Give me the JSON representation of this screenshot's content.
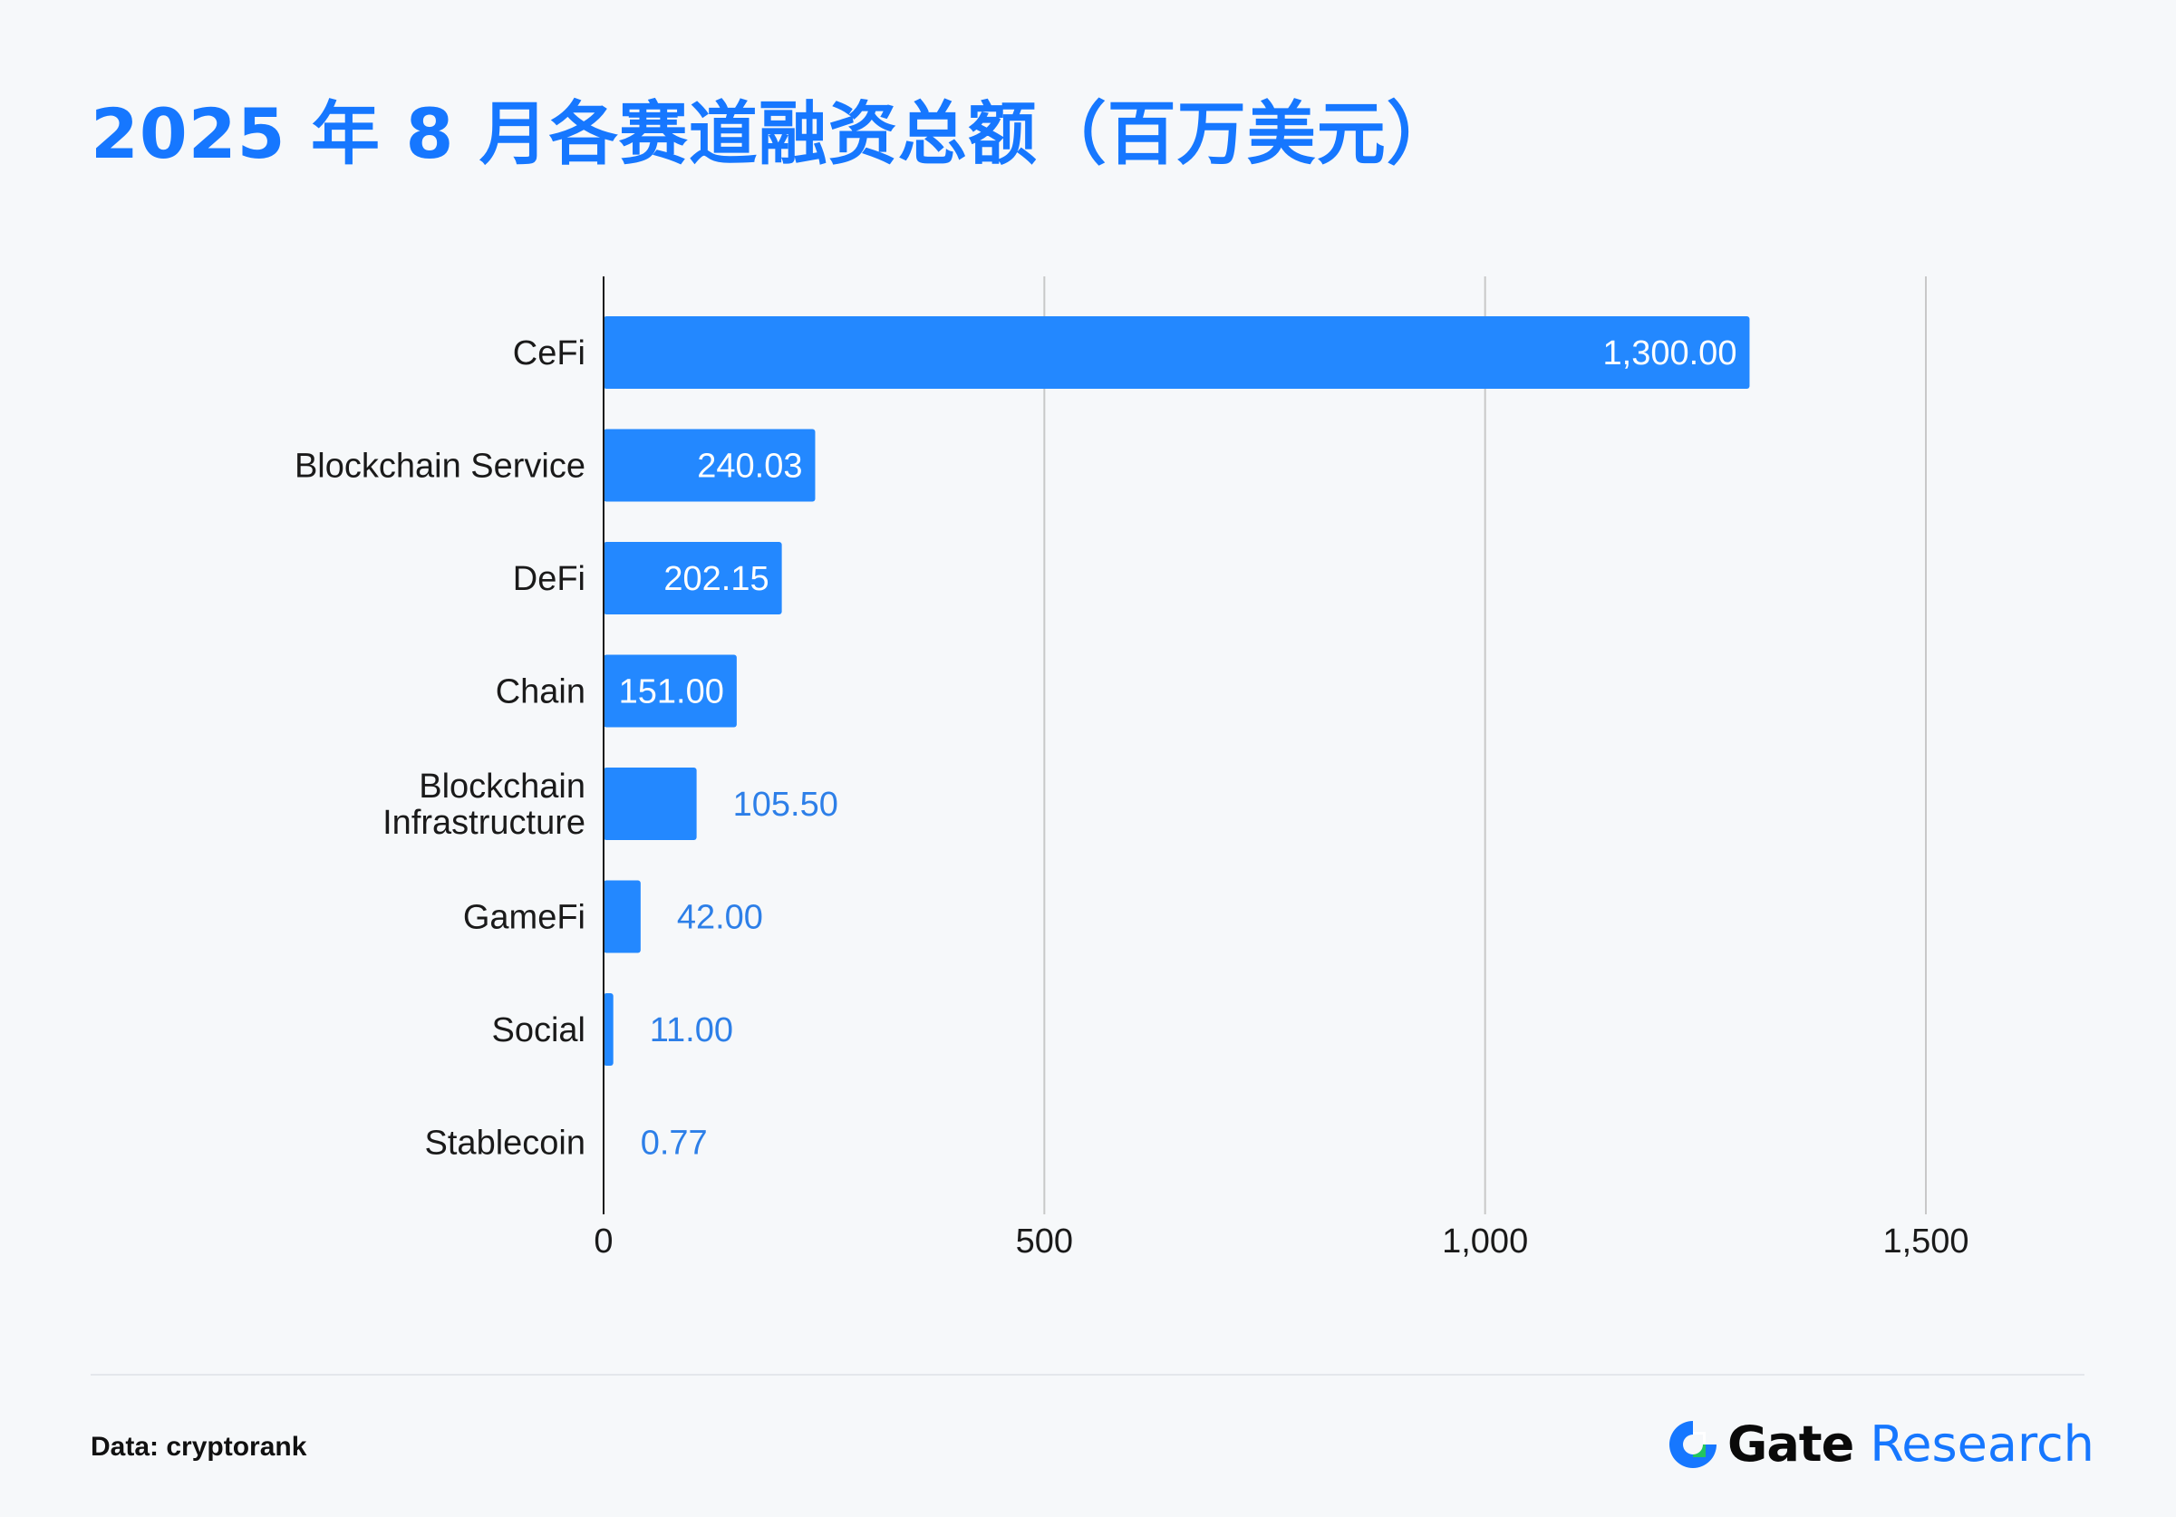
{
  "title": "2025 年 8 月各赛道融资总额（百万美元）",
  "source_text": "Data: cryptorank",
  "brand": {
    "name": "Gate",
    "suffix": "Research",
    "accent": "#1677ff",
    "logo_icon": "gate-logo-icon"
  },
  "colors": {
    "bar": "#2388ff",
    "value_inside": "#ffffff",
    "value_outside": "#2d7fe8",
    "grid": "#c8c8c8",
    "axis": "#1a1a1a"
  },
  "chart_data": {
    "type": "bar",
    "orientation": "horizontal",
    "title": "2025 年 8 月各赛道融资总额（百万美元）",
    "categories": [
      "CeFi",
      "Blockchain Service",
      "DeFi",
      "Chain",
      "Blockchain Infrastructure",
      "GameFi",
      "Social",
      "Stablecoin"
    ],
    "category_labels": [
      [
        "CeFi"
      ],
      [
        "Blockchain Service"
      ],
      [
        "DeFi"
      ],
      [
        "Chain"
      ],
      [
        "Blockchain",
        "Infrastructure"
      ],
      [
        "GameFi"
      ],
      [
        "Social"
      ],
      [
        "Stablecoin"
      ]
    ],
    "values": [
      1300.0,
      240.03,
      202.15,
      151.0,
      105.5,
      42.0,
      11.0,
      0.77
    ],
    "value_labels": [
      "1,300.00",
      "240.03",
      "202.15",
      "151.00",
      "105.50",
      "42.00",
      "11.00",
      "0.77"
    ],
    "labels_inside": [
      true,
      true,
      true,
      true,
      false,
      false,
      false,
      false
    ],
    "xlim": [
      0,
      1500
    ],
    "xticks": [
      0,
      500,
      1000,
      1500
    ],
    "xtick_labels": [
      "0",
      "500",
      "1,000",
      "1,500"
    ],
    "xlabel": "",
    "ylabel": "",
    "grid": "vertical",
    "legend": "none"
  }
}
